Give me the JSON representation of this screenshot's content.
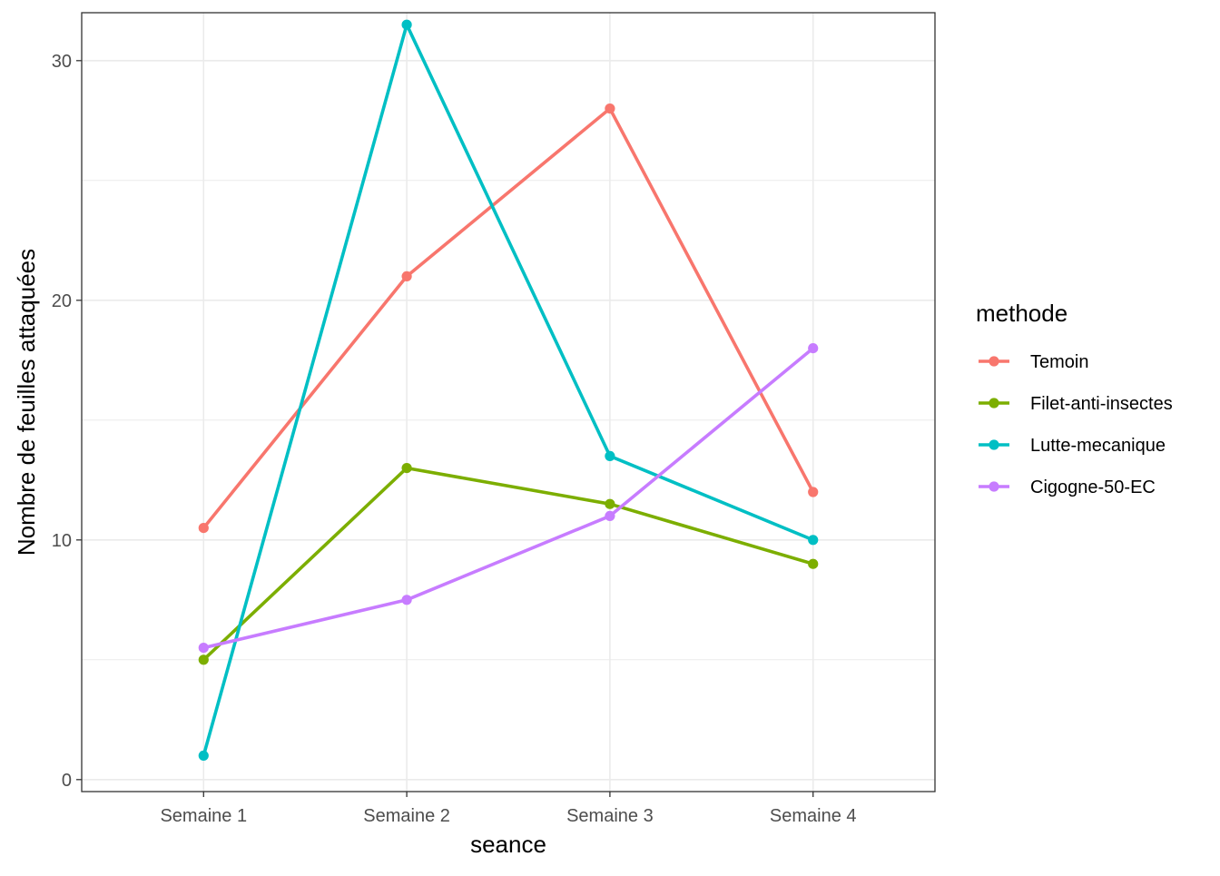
{
  "chart_data": {
    "type": "line",
    "xlabel": "seance",
    "ylabel": "Nombre de feuilles attaquées",
    "categories": [
      "Semaine 1",
      "Semaine 2",
      "Semaine 3",
      "Semaine 4"
    ],
    "ylim": [
      -0.5,
      32
    ],
    "yticks": [
      0,
      10,
      20,
      30
    ],
    "grid": true,
    "legend": {
      "title": "methode",
      "placement": "right"
    },
    "series": [
      {
        "name": "Temoin",
        "color": "#F8766D",
        "values": [
          10.5,
          21,
          28,
          12
        ]
      },
      {
        "name": "Filet-anti-insectes",
        "color": "#7CAE00",
        "values": [
          5,
          13,
          11.5,
          9
        ]
      },
      {
        "name": "Lutte-mecanique",
        "color": "#00BFC4",
        "values": [
          1,
          31.5,
          13.5,
          10
        ]
      },
      {
        "name": "Cigogne-50-EC",
        "color": "#C77CFF",
        "values": [
          5.5,
          7.5,
          11,
          18
        ]
      }
    ]
  }
}
